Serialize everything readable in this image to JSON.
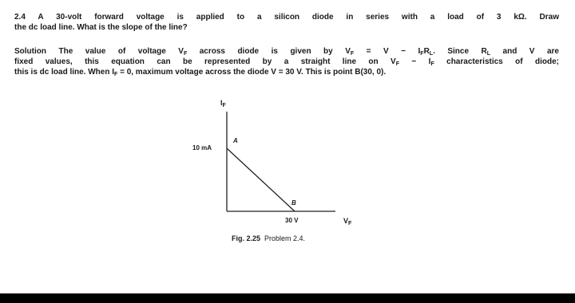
{
  "problem": {
    "number": "2.4",
    "lines": [
      [
        "A 30-volt forward voltage is applied to a silicon diode in series with a load of 3 kΩ. Draw"
      ],
      [
        "the dc load line. What is the slope of the line?"
      ]
    ]
  },
  "solution": {
    "label": "Solution",
    "lines": [
      [
        " The value of voltage V",
        {
          "sub": "F"
        },
        " across diode is given by V",
        {
          "sub": "F"
        },
        " = V − I",
        {
          "sub": "F"
        },
        "R",
        {
          "sub": "L"
        },
        ". Since R",
        {
          "sub": "L"
        },
        " and V are"
      ],
      [
        "fixed values, this equation can be represented by a straight line on V",
        {
          "sub": "F"
        },
        " − I",
        {
          "sub": "F"
        },
        " characteristics of diode;"
      ],
      [
        "this is dc load line. When I",
        {
          "sub": "F"
        },
        " = 0, maximum voltage across the diode V = 30 V. This is point B(30, 0)."
      ]
    ]
  },
  "figure": {
    "y_axis": [
      "I",
      {
        "sub": "F"
      }
    ],
    "x_axis": [
      "V",
      {
        "sub": "F"
      }
    ],
    "y_point": "10 mA",
    "x_point": "30 V",
    "point_a": "A",
    "point_b": "B"
  },
  "caption": {
    "label": "Fig. 2.25",
    "text": "Problem 2.4."
  }
}
